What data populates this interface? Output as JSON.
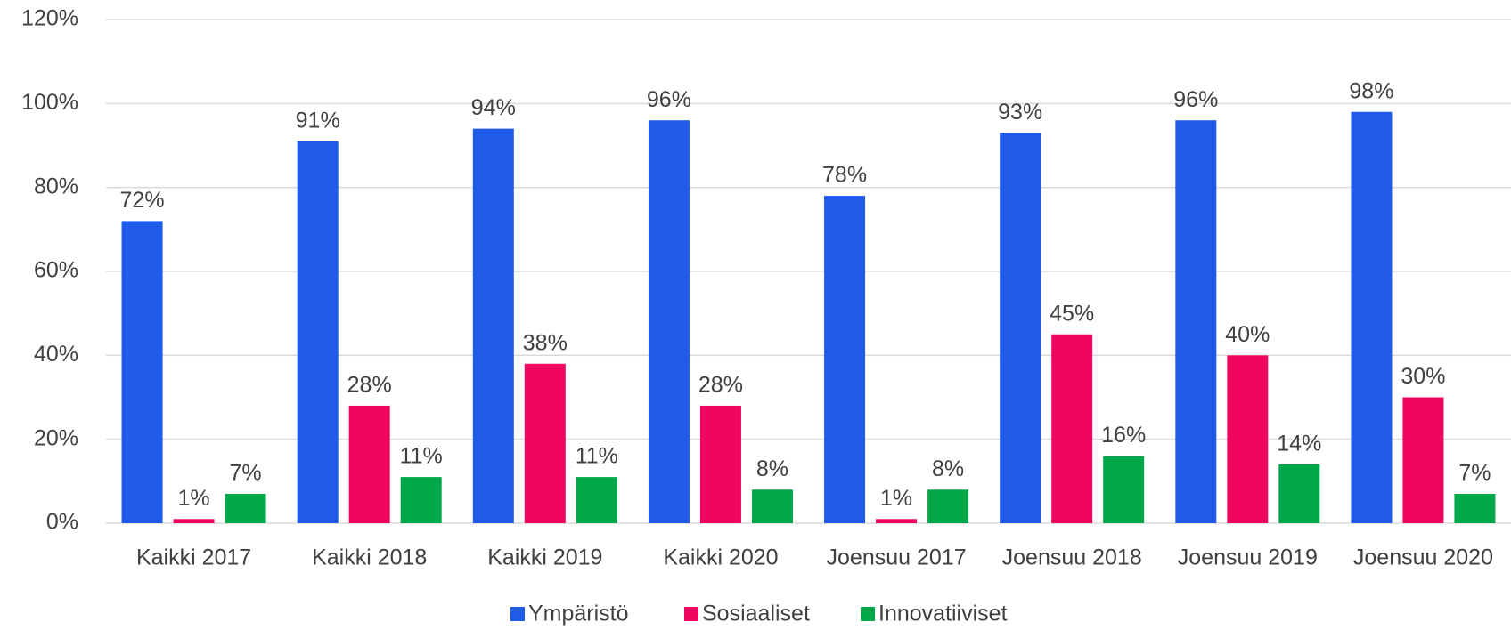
{
  "chart_data": {
    "type": "bar",
    "categories": [
      "Kaikki 2017",
      "Kaikki 2018",
      "Kaikki 2019",
      "Kaikki 2020",
      "Joensuu 2017",
      "Joensuu 2018",
      "Joensuu 2019",
      "Joensuu 2020"
    ],
    "series": [
      {
        "name": "Ympäristö",
        "color": "#1f5ae8",
        "values": [
          72,
          91,
          94,
          96,
          78,
          93,
          96,
          98
        ],
        "value_labels": [
          "72%",
          "91%",
          "94%",
          "96%",
          "78%",
          "93%",
          "96%",
          "98%"
        ]
      },
      {
        "name": "Sosiaaliset",
        "color": "#f0055f",
        "values": [
          1,
          28,
          38,
          28,
          1,
          45,
          40,
          30
        ],
        "value_labels": [
          "1%",
          "28%",
          "38%",
          "28%",
          "1%",
          "45%",
          "40%",
          "30%"
        ]
      },
      {
        "name": "Innovatiiviset",
        "color": "#00a84a",
        "values": [
          7,
          11,
          11,
          8,
          8,
          16,
          14,
          7
        ],
        "value_labels": [
          "7%",
          "11%",
          "11%",
          "8%",
          "8%",
          "16%",
          "14%",
          "7%"
        ]
      }
    ],
    "ylim": [
      0,
      120
    ],
    "yticks": [
      {
        "value": 0,
        "label": "0%"
      },
      {
        "value": 20,
        "label": "20%"
      },
      {
        "value": 40,
        "label": "40%"
      },
      {
        "value": 60,
        "label": "60%"
      },
      {
        "value": 80,
        "label": "80%"
      },
      {
        "value": 100,
        "label": "100%"
      },
      {
        "value": 120,
        "label": "120%"
      }
    ],
    "grid": true,
    "legend": "bottom"
  }
}
